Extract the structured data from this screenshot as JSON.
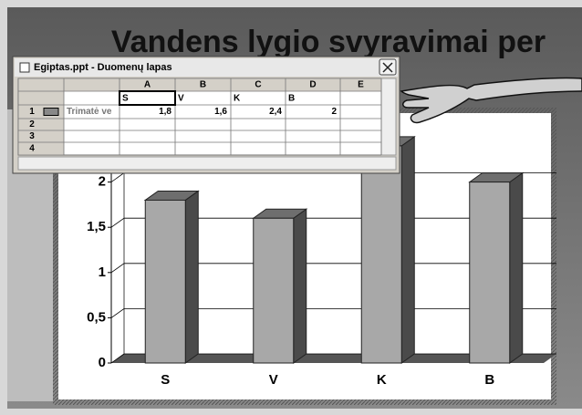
{
  "slide_title": "Vandens lygio svyravimai per",
  "datasheet": {
    "title": "Egiptas.ppt - Duomenų lapas",
    "columns": [
      "A",
      "B",
      "C",
      "D",
      "E"
    ],
    "header_row": [
      "S",
      "V",
      "K",
      "B"
    ],
    "rows": [
      {
        "number": "1",
        "name": "Trimatė ve",
        "cells": [
          "1,8",
          "1,6",
          "2,4",
          "2"
        ]
      },
      {
        "number": "2"
      },
      {
        "number": "3"
      },
      {
        "number": "4"
      }
    ]
  },
  "chart_data": {
    "type": "bar",
    "categories": [
      "S",
      "V",
      "K",
      "B"
    ],
    "values": [
      1.8,
      1.6,
      2.4,
      2
    ],
    "color": "#a8a8a8",
    "ylim": [
      0,
      2.5
    ],
    "yticks": [
      0,
      {
        "value": 0.5,
        "label": "0,5"
      },
      1,
      {
        "value": 1.5,
        "label": "1,5"
      },
      2
    ],
    "grid": true
  }
}
